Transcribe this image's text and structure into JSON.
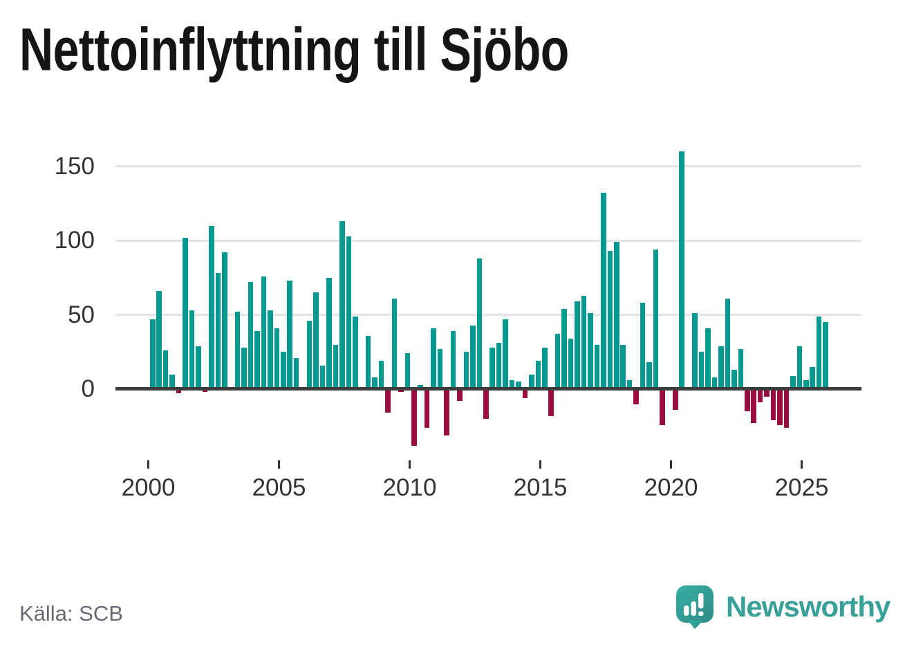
{
  "title": "Nettoinflyttning till Sjöbo",
  "source_label": "Källa: SCB",
  "branding": {
    "wordmark": "Newsworthy",
    "icon": "speech-bubble-mini-bar-chart-icon"
  },
  "colors": {
    "positive_bar": "#049a92",
    "negative_bar": "#9b0c41",
    "axis_line": "#3d3d3d",
    "gridline": "#e3e3e3",
    "axis_label_text": "#333333",
    "title_text": "#151515",
    "source_text": "#6a6a74",
    "brand_teal": "#38a099"
  },
  "chart_data": {
    "type": "bar",
    "title": "Nettoinflyttning till Sjöbo",
    "x_start": "2000-Q1",
    "x_frequency": "quarterly",
    "values": [
      47,
      66,
      26,
      10,
      -3,
      102,
      53,
      29,
      -2,
      110,
      78,
      92,
      -1,
      52,
      28,
      72,
      39,
      76,
      53,
      41,
      25,
      73,
      21,
      0,
      46,
      65,
      16,
      75,
      30,
      113,
      103,
      49,
      0,
      36,
      8,
      19,
      -16,
      61,
      -2,
      24,
      -38,
      3,
      -26,
      41,
      27,
      -31,
      39,
      -8,
      25,
      43,
      88,
      -20,
      28,
      31,
      47,
      6,
      5,
      -6,
      10,
      19,
      28,
      -18,
      37,
      54,
      34,
      59,
      63,
      51,
      30,
      132,
      93,
      99,
      30,
      6,
      -10,
      58,
      18,
      94,
      -24,
      0,
      -14,
      160,
      0,
      51,
      25,
      41,
      8,
      29,
      61,
      13,
      27,
      -15,
      -23,
      -9,
      -5,
      -21,
      -24,
      -26,
      9,
      29,
      6,
      15,
      49,
      45
    ],
    "x_tick_labels": [
      "2000",
      "2005",
      "2010",
      "2015",
      "2020",
      "2025"
    ],
    "x_tick_years": [
      2000,
      2005,
      2010,
      2015,
      2020,
      2025
    ],
    "y_tick_labels": [
      "0",
      "50",
      "100",
      "150"
    ],
    "y_ticks": [
      0,
      50,
      100,
      150
    ],
    "ylim": [
      -45,
      175
    ],
    "grid": "horizontal",
    "legend": "none",
    "bar_sign_coloring": "positive teal, negative crimson"
  }
}
